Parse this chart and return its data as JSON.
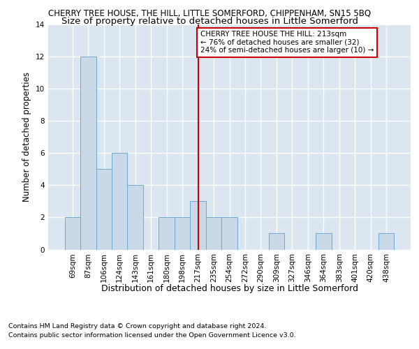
{
  "title": "CHERRY TREE HOUSE, THE HILL, LITTLE SOMERFORD, CHIPPENHAM, SN15 5BQ",
  "subtitle": "Size of property relative to detached houses in Little Somerford",
  "xlabel": "Distribution of detached houses by size in Little Somerford",
  "ylabel": "Number of detached properties",
  "categories": [
    "69sqm",
    "87sqm",
    "106sqm",
    "124sqm",
    "143sqm",
    "161sqm",
    "180sqm",
    "198sqm",
    "217sqm",
    "235sqm",
    "254sqm",
    "272sqm",
    "290sqm",
    "309sqm",
    "327sqm",
    "346sqm",
    "364sqm",
    "383sqm",
    "401sqm",
    "420sqm",
    "438sqm"
  ],
  "values": [
    2,
    12,
    5,
    6,
    4,
    0,
    2,
    2,
    3,
    2,
    2,
    0,
    0,
    1,
    0,
    0,
    1,
    0,
    0,
    0,
    1
  ],
  "bar_color": "#c9d9e8",
  "bar_edge_color": "#6fa8d0",
  "highlight_index": 8,
  "annotation_line1": "CHERRY TREE HOUSE THE HILL: 213sqm",
  "annotation_line2": "← 76% of detached houses are smaller (32)",
  "annotation_line3": "24% of semi-detached houses are larger (10) →",
  "annotation_box_color": "#ffffff",
  "annotation_box_edge": "#cc0000",
  "redline_color": "#cc0000",
  "ylim": [
    0,
    14
  ],
  "yticks": [
    0,
    2,
    4,
    6,
    8,
    10,
    12,
    14
  ],
  "background_color": "#dce6f0",
  "footnote1": "Contains HM Land Registry data © Crown copyright and database right 2024.",
  "footnote2": "Contains public sector information licensed under the Open Government Licence v3.0.",
  "title_fontsize": 8.5,
  "subtitle_fontsize": 9.5,
  "xlabel_fontsize": 9,
  "ylabel_fontsize": 8.5,
  "tick_fontsize": 7.5,
  "footnote_fontsize": 6.8,
  "ann_fontsize": 7.5
}
